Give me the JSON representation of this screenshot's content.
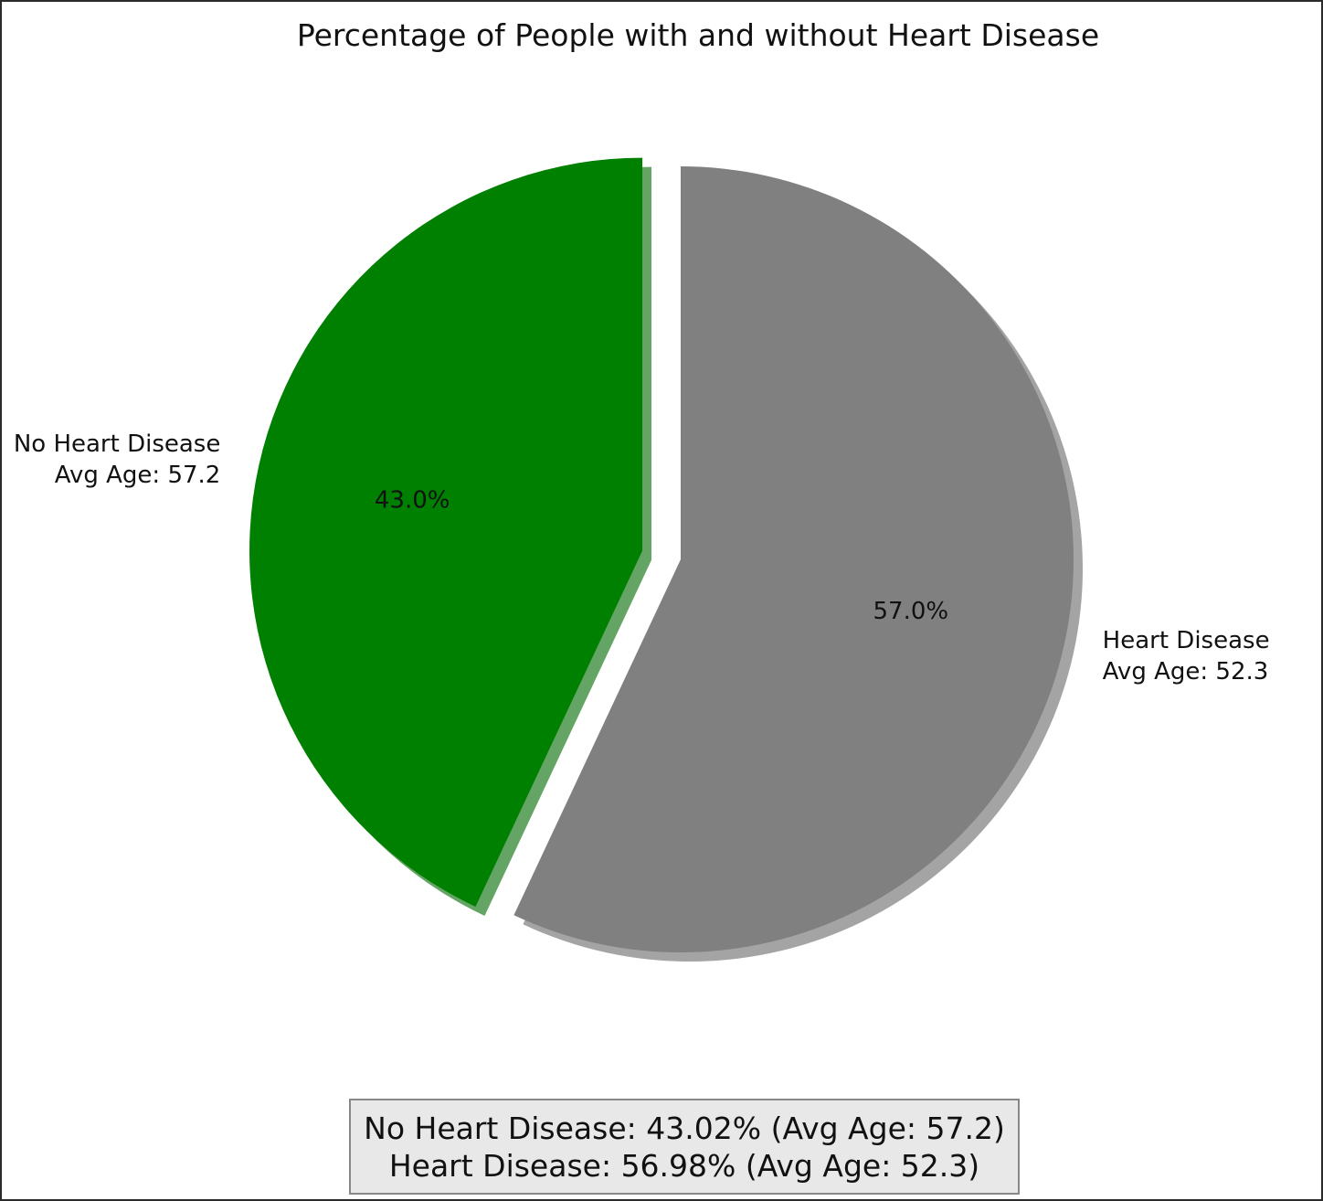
{
  "chart_data": {
    "type": "pie",
    "title": "Percentage of People with and without Heart Disease",
    "slices": [
      {
        "label_line1": "No Heart Disease",
        "label_line2": "Avg Age: 57.2",
        "value": 43.02,
        "pct_label": "43.0%",
        "color": "#008000",
        "exploded": true
      },
      {
        "label_line1": "Heart Disease",
        "label_line2": "Avg Age: 52.3",
        "value": 56.98,
        "pct_label": "57.0%",
        "color": "#808080",
        "exploded": false
      }
    ],
    "start_angle_deg": 90,
    "direction": "counterclockwise",
    "shadow": true,
    "summary": [
      "No Heart Disease: 43.02% (Avg Age: 57.2)",
      "Heart Disease: 56.98% (Avg Age: 52.3)"
    ]
  }
}
